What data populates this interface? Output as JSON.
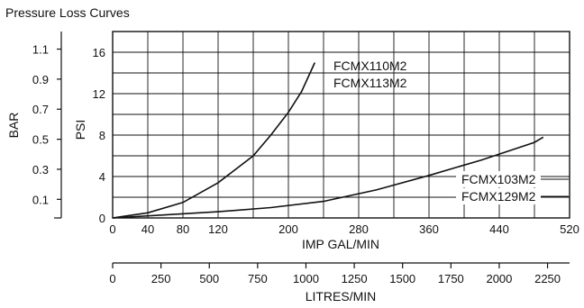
{
  "chart_data": {
    "type": "line",
    "title": "Pressure Loss Curves",
    "xlabel": "IMP GAL/MIN",
    "x2label": "LITRES/MIN",
    "ylabel": "PSI",
    "y2label": "BAR",
    "xlim": [
      0,
      520
    ],
    "ylim": [
      0,
      18
    ],
    "x_ticks": [
      "0",
      "40",
      "80",
      "120",
      "200",
      "280",
      "360",
      "440",
      "520"
    ],
    "x_tick_values": [
      0,
      40,
      80,
      120,
      200,
      280,
      360,
      440,
      520
    ],
    "y_ticks": [
      "0",
      "4",
      "8",
      "12",
      "16"
    ],
    "y_tick_values": [
      0,
      4,
      8,
      12,
      16
    ],
    "bar_ticks": [
      "0.1",
      "0.3",
      "0.5",
      "0.7",
      "0.9",
      "1.1"
    ],
    "bar_tick_values": [
      0.1,
      0.3,
      0.5,
      0.7,
      0.9,
      1.1
    ],
    "litre_ticks": [
      "0",
      "250",
      "500",
      "750",
      "1000",
      "1250",
      "1500",
      "1750",
      "2000",
      "2250"
    ],
    "litre_tick_values": [
      0,
      250,
      500,
      750,
      1000,
      1250,
      1500,
      1750,
      2000,
      2250
    ],
    "grid": true,
    "series": [
      {
        "name": "FCMX110M2 FCMX113M2",
        "labels": [
          "FCMX110M2",
          "FCMX113M2"
        ],
        "x": [
          0,
          40,
          80,
          120,
          160,
          180,
          200,
          215,
          230
        ],
        "y": [
          0,
          0.5,
          1.5,
          3.4,
          6.0,
          8.0,
          10.2,
          12.2,
          15.0
        ]
      },
      {
        "name": "FCMX103M2 FCMX129M2",
        "labels": [
          "FCMX103M2",
          "FCMX129M2"
        ],
        "x": [
          0,
          60,
          120,
          180,
          240,
          300,
          360,
          420,
          480,
          490
        ],
        "y": [
          0,
          0.3,
          0.6,
          1.0,
          1.6,
          2.7,
          4.1,
          5.6,
          7.3,
          7.8
        ]
      }
    ]
  }
}
